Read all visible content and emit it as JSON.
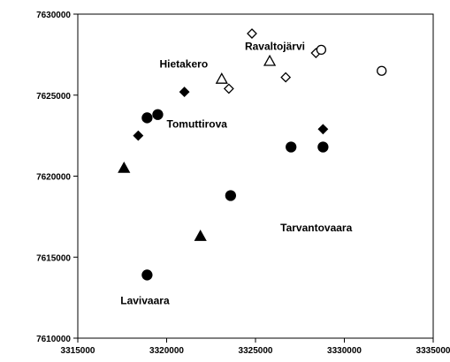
{
  "chart_data": {
    "type": "scatter",
    "title": "",
    "xlabel": "",
    "ylabel": "",
    "xlim": [
      3315000,
      3335000
    ],
    "ylim": [
      7610000,
      7630000
    ],
    "xticks": [
      3315000,
      3320000,
      3325000,
      3330000,
      3335000
    ],
    "yticks": [
      7610000,
      7615000,
      7620000,
      7625000,
      7630000
    ],
    "xtick_labels": [
      "3315000",
      "3320000",
      "3325000",
      "3330000",
      "3335000"
    ],
    "ytick_labels": [
      "7610000",
      "7615000",
      "7620000",
      "7625000",
      "7630000"
    ],
    "grid": false,
    "legend": false,
    "series": [
      {
        "marker": "filled-circle",
        "points": [
          {
            "x": 3318900,
            "y": 7623600
          },
          {
            "x": 3319500,
            "y": 7623800
          },
          {
            "x": 3327000,
            "y": 7621800
          },
          {
            "x": 3328800,
            "y": 7621800
          },
          {
            "x": 3323600,
            "y": 7618800
          },
          {
            "x": 3318900,
            "y": 7613900
          }
        ]
      },
      {
        "marker": "filled-diamond",
        "points": [
          {
            "x": 3321000,
            "y": 7625200
          },
          {
            "x": 3318400,
            "y": 7622500
          },
          {
            "x": 3328800,
            "y": 7622900
          }
        ]
      },
      {
        "marker": "filled-triangle",
        "points": [
          {
            "x": 3317600,
            "y": 7620500
          },
          {
            "x": 3321900,
            "y": 7616300
          }
        ]
      },
      {
        "marker": "open-diamond",
        "points": [
          {
            "x": 3324800,
            "y": 7628800
          },
          {
            "x": 3326700,
            "y": 7626100
          },
          {
            "x": 3328400,
            "y": 7627600
          },
          {
            "x": 3323500,
            "y": 7625400
          }
        ]
      },
      {
        "marker": "open-triangle",
        "points": [
          {
            "x": 3323100,
            "y": 7626000
          },
          {
            "x": 3325800,
            "y": 7627100
          }
        ]
      },
      {
        "marker": "open-circle",
        "points": [
          {
            "x": 3328700,
            "y": 7627800
          },
          {
            "x": 3332100,
            "y": 7626500
          }
        ]
      }
    ],
    "annotations": [
      {
        "text": "Ravaltojärvi",
        "x": 3324400,
        "y": 7627800
      },
      {
        "text": "Hietakero",
        "x": 3319600,
        "y": 7626700
      },
      {
        "text": "Tomuttirova",
        "x": 3320000,
        "y": 7623000
      },
      {
        "text": "Tarvantovaara",
        "x": 3326400,
        "y": 7616600
      },
      {
        "text": "Lavivaara",
        "x": 3317400,
        "y": 7612100
      }
    ]
  }
}
